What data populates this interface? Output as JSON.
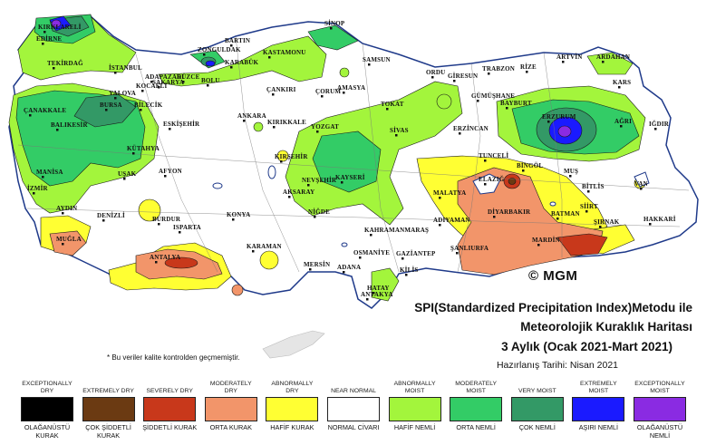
{
  "title": {
    "line1": "SPI(Standardized Precipitation Index)Metodu ile",
    "line2": "Meteorolojik Kuraklık Haritası",
    "line3": "3 Aylık (Ocak 2021-Mart 2021)",
    "line4": "Hazırlanış Tarihi: Nisan 2021"
  },
  "note": "* Bu veriler kalite kontrolden geçmemiştir.",
  "logo": "© MGM",
  "colors": {
    "exceptionally_dry": "#000000",
    "extremely_dry": "#6b3a12",
    "severely_dry": "#c8381b",
    "moderately_dry": "#f2956a",
    "abnormally_dry": "#ffff33",
    "near_normal": "#ffffff",
    "abnormally_moist": "#a3f53c",
    "moderately_moist": "#33cc66",
    "very_moist": "#339966",
    "extremely_moist": "#1a1aff",
    "exceptionally_moist": "#8a2be2",
    "sea": "#ffffff",
    "border": "#1f3a8a"
  },
  "legend": [
    {
      "en": "EXCEPTIONALLY DRY",
      "tr": "OLAĞANÜSTÜ KURAK",
      "color": "#000000"
    },
    {
      "en": "EXTREMELY DRY",
      "tr": "ÇOK ŞİDDETLİ KURAK",
      "color": "#6b3a12"
    },
    {
      "en": "SEVERELY DRY",
      "tr": "ŞİDDETLİ KURAK",
      "color": "#c8381b"
    },
    {
      "en": "MODERATELY DRY",
      "tr": "ORTA KURAK",
      "color": "#f2956a"
    },
    {
      "en": "ABNORMALLY DRY",
      "tr": "HAFİF KURAK",
      "color": "#ffff33"
    },
    {
      "en": "NEAR NORMAL",
      "tr": "NORMAL CİVARI",
      "color": "#ffffff"
    },
    {
      "en": "ABNORMALLY MOIST",
      "tr": "HAFİF NEMLİ",
      "color": "#a3f53c"
    },
    {
      "en": "MODERATELY MOIST",
      "tr": "ORTA NEMLİ",
      "color": "#33cc66"
    },
    {
      "en": "VERY MOIST",
      "tr": "ÇOK NEMLİ",
      "color": "#339966"
    },
    {
      "en": "EXTREMELY MOIST",
      "tr": "AŞIRI NEMLİ",
      "color": "#1a1aff"
    },
    {
      "en": "EXCEPTIONALLY MOIST",
      "tr": "OLAĞANÜSTÜ NEMLİ",
      "color": "#8a2be2"
    }
  ],
  "cities": [
    "KIRKLARELİ",
    "EDİRNE",
    "TEKİRDAĞ",
    "İSTANBUL",
    "KOCAELİ",
    "SAKARYA",
    "YALOVA",
    "BURSA",
    "BİLECİK",
    "ÇANAKKALE",
    "BALIKESİR",
    "KÜTAHYA",
    "MANİSA",
    "İZMİR",
    "UŞAK",
    "AFYON",
    "ESKİŞEHİR",
    "DÜZCE",
    "BOLU",
    "ADAPAZARI",
    "ZONGULDAK",
    "BARTIN",
    "KARABÜK",
    "KASTAMONU",
    "SİNOP",
    "SAMSUN",
    "ÇANKIRI",
    "ÇORUM",
    "AMASYA",
    "ORDU",
    "GİRESUN",
    "TRABZON",
    "RİZE",
    "ARTVİN",
    "ARDAHAN",
    "KARS",
    "GÜMÜŞHANE",
    "BAYBURT",
    "ERZURUM",
    "AĞRI",
    "IĞDIR",
    "ANKARA",
    "KIRIKKALE",
    "YOZGAT",
    "TOKAT",
    "SİVAS",
    "ERZİNCAN",
    "KIRŞEHİR",
    "NEVŞEHİR",
    "KAYSERİ",
    "AKSARAY",
    "NİĞDE",
    "TUNCELİ",
    "BİNGÖL",
    "MUŞ",
    "ELAZIĞ",
    "MALATYA",
    "BİTLİS",
    "VAN",
    "AYDIN",
    "DENİZLİ",
    "BURDUR",
    "ISPARTA",
    "KONYA",
    "MUĞLA",
    "ANTALYA",
    "KARAMAN",
    "MERSİN",
    "ADANA",
    "OSMANİYE",
    "KAHRAMANMARAŞ",
    "ADIYAMAN",
    "GAZİANTEP",
    "ŞANLIURFA",
    "DİYARBAKIR",
    "BATMAN",
    "SİİRT",
    "ŞIRNAK",
    "HAKKARİ",
    "MARDİN",
    "KİLİS",
    "HATAY",
    "ANTAKYA"
  ]
}
